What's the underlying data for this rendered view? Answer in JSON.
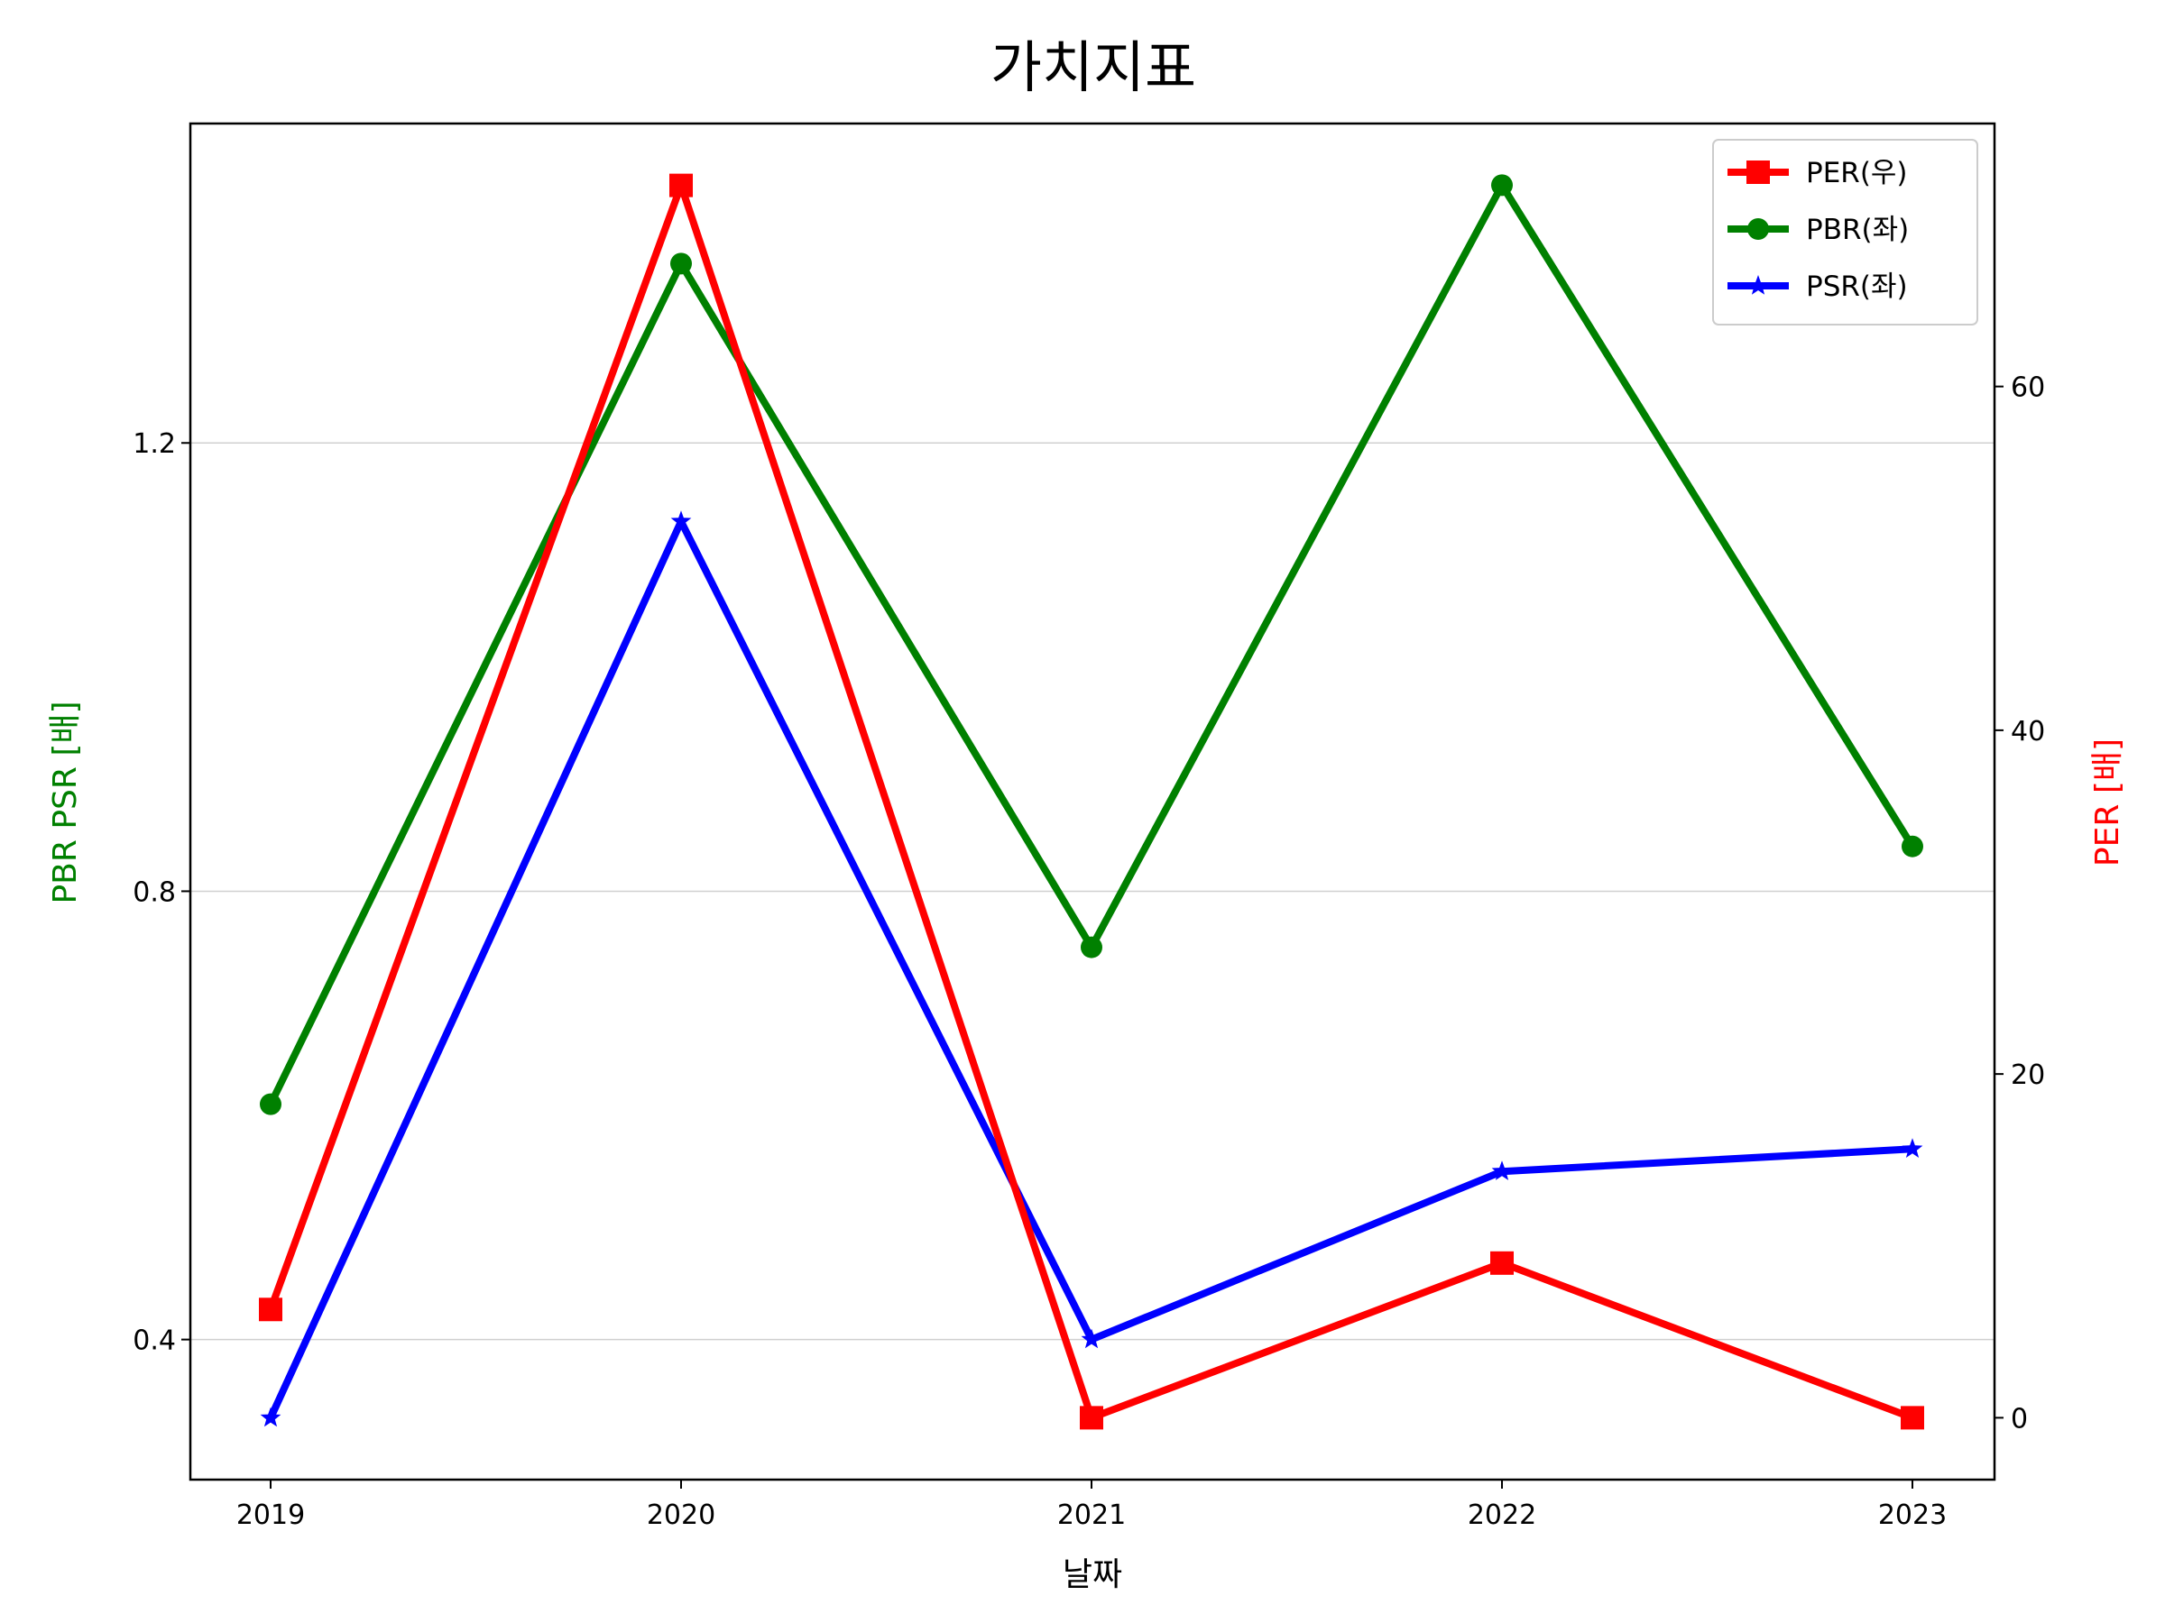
{
  "chart_data": {
    "type": "line",
    "title": "가치지표",
    "xlabel": "날짜",
    "ylabel_left": "PBR PSR [배]",
    "ylabel_right": "PER [배]",
    "categories": [
      "2019",
      "2020",
      "2021",
      "2022",
      "2023"
    ],
    "left_ylim": [
      0.275,
      1.485
    ],
    "left_yticks": [
      0.4,
      0.8,
      1.2
    ],
    "left_ytick_labels": [
      "0.4",
      "0.8",
      "1.2"
    ],
    "right_ylim": [
      -3.6,
      75.3
    ],
    "right_yticks": [
      0,
      20,
      40,
      60
    ],
    "right_ytick_labels": [
      "0",
      "20",
      "40",
      "60"
    ],
    "grid": "horizontal (left axis)",
    "legend_position": "top-right",
    "series": [
      {
        "name": "PER(우)",
        "axis": "right",
        "color": "#ff0000",
        "marker": "square",
        "values": [
          6.3,
          71.7,
          0.0,
          9.0,
          0.0
        ]
      },
      {
        "name": "PBR(좌)",
        "axis": "left",
        "color": "#008000",
        "marker": "circle",
        "values": [
          0.61,
          1.36,
          0.75,
          1.43,
          0.84
        ]
      },
      {
        "name": "PSR(좌)",
        "axis": "left",
        "color": "#0000ff",
        "marker": "star",
        "values": [
          0.33,
          1.13,
          0.4,
          0.55,
          0.57
        ]
      }
    ]
  }
}
